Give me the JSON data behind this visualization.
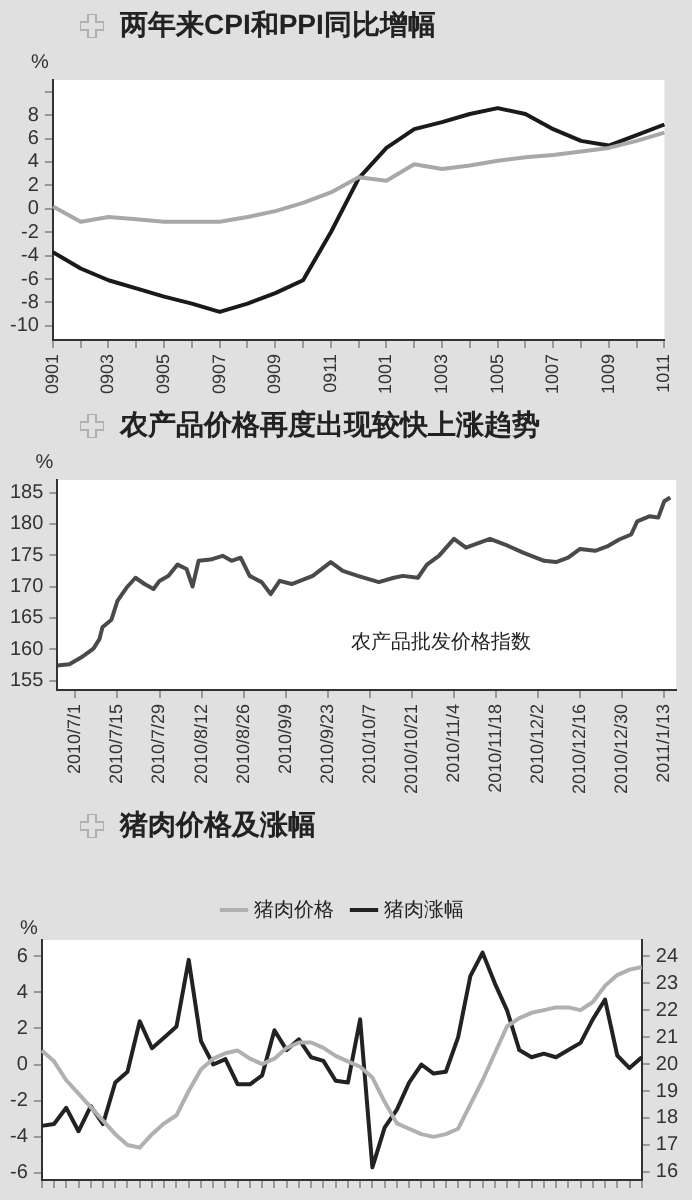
{
  "chart_data": [
    {
      "type": "line",
      "title": "两年来CPI和PPI同比增幅",
      "ylabel": "%",
      "categories": [
        "0901",
        null,
        "0903",
        null,
        "0905",
        null,
        "0907",
        null,
        "0909",
        null,
        "0911",
        null,
        "1001",
        null,
        "1003",
        null,
        "1005",
        null,
        "1007",
        null,
        "1009",
        null,
        "1011"
      ],
      "series": [
        {
          "color": "#a8a8a8",
          "values": [
            0.2,
            -1.1,
            -0.7,
            -0.9,
            -1.1,
            -1.1,
            -1.1,
            -0.7,
            -0.2,
            0.5,
            1.4,
            2.7,
            2.4,
            3.8,
            3.4,
            3.7,
            4.1,
            4.4,
            4.6,
            4.9,
            5.2,
            5.8,
            6.5
          ]
        },
        {
          "color": "#1a1a1a",
          "values": [
            -3.7,
            -5.1,
            -6.1,
            -6.8,
            -7.5,
            -8.1,
            -8.8,
            -8.1,
            -7.2,
            -6.1,
            -2.0,
            2.6,
            5.2,
            6.8,
            7.4,
            8.1,
            8.6,
            8.1,
            6.8,
            5.8,
            5.4,
            6.3,
            7.2
          ]
        }
      ],
      "ylim": [
        -11.2,
        11
      ],
      "yticks": [
        -10,
        -8,
        -6,
        -4,
        -2,
        0,
        2,
        4,
        6,
        8,
        {
          "value": 10,
          "label": null
        }
      ],
      "marker": "none",
      "line_style": "solid"
    },
    {
      "type": "line",
      "title": "农产品价格再度出现较快上涨趋势",
      "ylabel": "%",
      "x": [
        "2010-06-25",
        "2010-06-29",
        "2010-07-03",
        "2010-07-07",
        "2010-07-09",
        "2010-07-10",
        "2010-07-13",
        "2010-07-15",
        "2010-07-18",
        "2010-07-21",
        "2010-07-24",
        "2010-07-27",
        "2010-07-29",
        "2010-08-01",
        "2010-08-04",
        "2010-08-07",
        "2010-08-09",
        "2010-08-11",
        "2010-08-15",
        "2010-08-19",
        "2010-08-22",
        "2010-08-25",
        "2010-08-28",
        "2010-09-01",
        "2010-09-04",
        "2010-09-07",
        "2010-09-11",
        "2010-09-18",
        "2010-09-24",
        "2010-09-28",
        "2010-10-03",
        "2010-10-10",
        "2010-10-15",
        "2010-10-18",
        "2010-10-23",
        "2010-10-26",
        "2010-10-30",
        "2010-11-04",
        "2010-11-08",
        "2010-11-16",
        "2010-11-21",
        "2010-11-27",
        "2010-12-04",
        "2010-12-08",
        "2010-12-12",
        "2010-12-16",
        "2010-12-21",
        "2010-12-25",
        "2010-12-29",
        "2011-01-02",
        "2011-01-04",
        "2011-01-08",
        "2011-01-11",
        "2011-01-13",
        "2011-01-15"
      ],
      "series": [
        {
          "name": "农产品批发价格指数",
          "color": "#4a4a4a",
          "values": [
            157.4,
            157.6,
            158.7,
            160.1,
            161.6,
            163.5,
            164.7,
            167.7,
            169.8,
            171.4,
            170.4,
            169.6,
            170.9,
            171.7,
            173.5,
            172.8,
            170.0,
            174.1,
            174.3,
            174.9,
            174.1,
            174.6,
            171.7,
            170.7,
            168.8,
            170.9,
            170.4,
            171.7,
            173.9,
            172.5,
            171.7,
            170.7,
            171.4,
            171.7,
            171.4,
            173.5,
            174.9,
            177.6,
            176.2,
            177.6,
            176.7,
            175.4,
            174.1,
            173.9,
            174.6,
            176.0,
            175.7,
            176.4,
            177.5,
            178.3,
            180.4,
            181.2,
            181.0,
            183.6,
            184.2
          ]
        }
      ],
      "xlim": [
        "2010-06-25",
        "2011-01-17"
      ],
      "xticks": [
        {
          "value": "2010-07-01",
          "label": "2010/7/1"
        },
        {
          "value": "2010-07-15",
          "label": "2010/7/15"
        },
        {
          "value": "2010-07-29",
          "label": "2010/7/29"
        },
        {
          "value": "2010-08-12",
          "label": "2010/8/12"
        },
        {
          "value": "2010-08-26",
          "label": "2010/8/26"
        },
        {
          "value": "2010-09-09",
          "label": "2010/9/9"
        },
        {
          "value": "2010-09-23",
          "label": "2010/9/23"
        },
        {
          "value": "2010-10-07",
          "label": "2010/10/7"
        },
        {
          "value": "2010-10-21",
          "label": "2010/10/21"
        },
        {
          "value": "2010-11-04",
          "label": "2010/11/4"
        },
        {
          "value": "2010-11-18",
          "label": "2010/11/18"
        },
        {
          "value": "2010-12-02",
          "label": "2010/12/2"
        },
        {
          "value": "2010-12-16",
          "label": "2010/12/16"
        },
        {
          "value": "2010-12-30",
          "label": "2010/12/30"
        },
        {
          "value": "2011-01-13",
          "label": "2011/1/13"
        }
      ],
      "ylim": [
        153.5,
        187
      ],
      "yticks": [
        155,
        160,
        165,
        170,
        175,
        180,
        185
      ],
      "marker": "none",
      "line_style": "solid"
    },
    {
      "type": "line",
      "title": "猪肉价格及涨幅",
      "ylabel": "%",
      "legend": "top",
      "categories": [
        null,
        null,
        null,
        null,
        null,
        null,
        null,
        null,
        null,
        null,
        null,
        null,
        null,
        null,
        null,
        null,
        null,
        null,
        null,
        null,
        null,
        null,
        null,
        null,
        null,
        null,
        null,
        null,
        null,
        null,
        null,
        null,
        null,
        null,
        null,
        null,
        null,
        null,
        null,
        null,
        null,
        null,
        null,
        null,
        null,
        null,
        null,
        null,
        null,
        null
      ],
      "series": [
        {
          "name": "猪肉价格",
          "color": "#b0b0b0",
          "axis": "y2",
          "values": [
            20.5,
            20.1,
            19.4,
            18.9,
            18.4,
            17.9,
            17.4,
            17.0,
            16.9,
            17.4,
            17.8,
            18.1,
            19.0,
            19.8,
            20.2,
            20.4,
            20.5,
            20.2,
            20.0,
            20.2,
            20.6,
            20.8,
            20.8,
            20.6,
            20.3,
            20.1,
            19.9,
            19.5,
            18.6,
            17.8,
            17.6,
            17.4,
            17.3,
            17.4,
            17.6,
            18.5,
            19.4,
            20.4,
            21.4,
            21.7,
            21.9,
            22.0,
            22.1,
            22.1,
            22.0,
            22.3,
            22.9,
            23.3,
            23.5,
            23.6
          ]
        },
        {
          "name": "猪肉涨幅",
          "color": "#222222",
          "values": [
            -3.4,
            -3.3,
            -2.4,
            -3.7,
            -2.3,
            -3.3,
            -1.0,
            -0.4,
            2.4,
            0.9,
            1.5,
            2.1,
            5.8,
            1.3,
            0.0,
            0.3,
            -1.1,
            -1.1,
            -0.6,
            1.9,
            0.8,
            1.4,
            0.4,
            0.2,
            -0.9,
            -1.0,
            2.5,
            -5.7,
            -3.5,
            -2.5,
            -1.0,
            0.0,
            -0.5,
            -0.4,
            1.5,
            4.9,
            6.2,
            4.5,
            3.0,
            0.8,
            0.4,
            0.6,
            0.4,
            0.8,
            1.2,
            2.5,
            3.6,
            0.5,
            -0.2,
            0.4
          ]
        }
      ],
      "ylim": [
        -6.4,
        6.9
      ],
      "yticks": [
        -6,
        -4,
        -2,
        0,
        2,
        4,
        6
      ],
      "y2lim": [
        15.7,
        24.6
      ],
      "y2ticks": [
        16,
        17,
        18,
        19,
        20,
        21,
        22,
        23,
        24
      ],
      "marker": "none",
      "line_style": "solid"
    }
  ]
}
